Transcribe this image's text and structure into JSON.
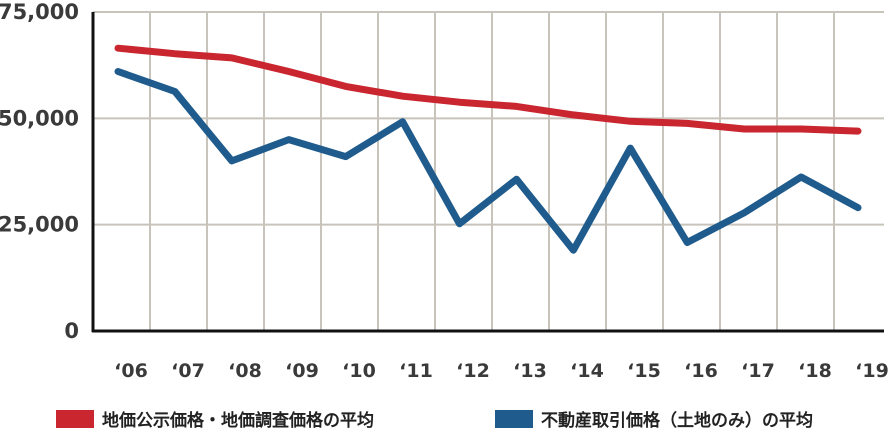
{
  "chart_data": {
    "type": "line",
    "categories": [
      "‘06",
      "‘07",
      "‘08",
      "‘09",
      "‘10",
      "‘11",
      "‘12",
      "‘13",
      "‘14",
      "‘15",
      "‘16",
      "‘17",
      "‘18",
      "‘19"
    ],
    "ylim": [
      0,
      75000
    ],
    "yticks": [
      0,
      25000,
      50000,
      75000
    ],
    "ytick_labels": [
      "0",
      "25,000",
      "50,000",
      "75,000"
    ],
    "grid": true,
    "legend_position": "bottom",
    "series": [
      {
        "name": "地価公示価格・地価調査価格の平均",
        "color": "#c9262f",
        "values": [
          66500,
          65200,
          64200,
          61000,
          57500,
          55200,
          53800,
          52800,
          50800,
          49300,
          48800,
          47500,
          47500,
          47000
        ]
      },
      {
        "name": "不動産取引価格（土地のみ）の平均",
        "color": "#1f5b8c",
        "values": [
          61000,
          56300,
          40000,
          45000,
          41000,
          49200,
          25200,
          35700,
          19000,
          43000,
          20800,
          27800,
          36200,
          29000
        ]
      }
    ]
  }
}
